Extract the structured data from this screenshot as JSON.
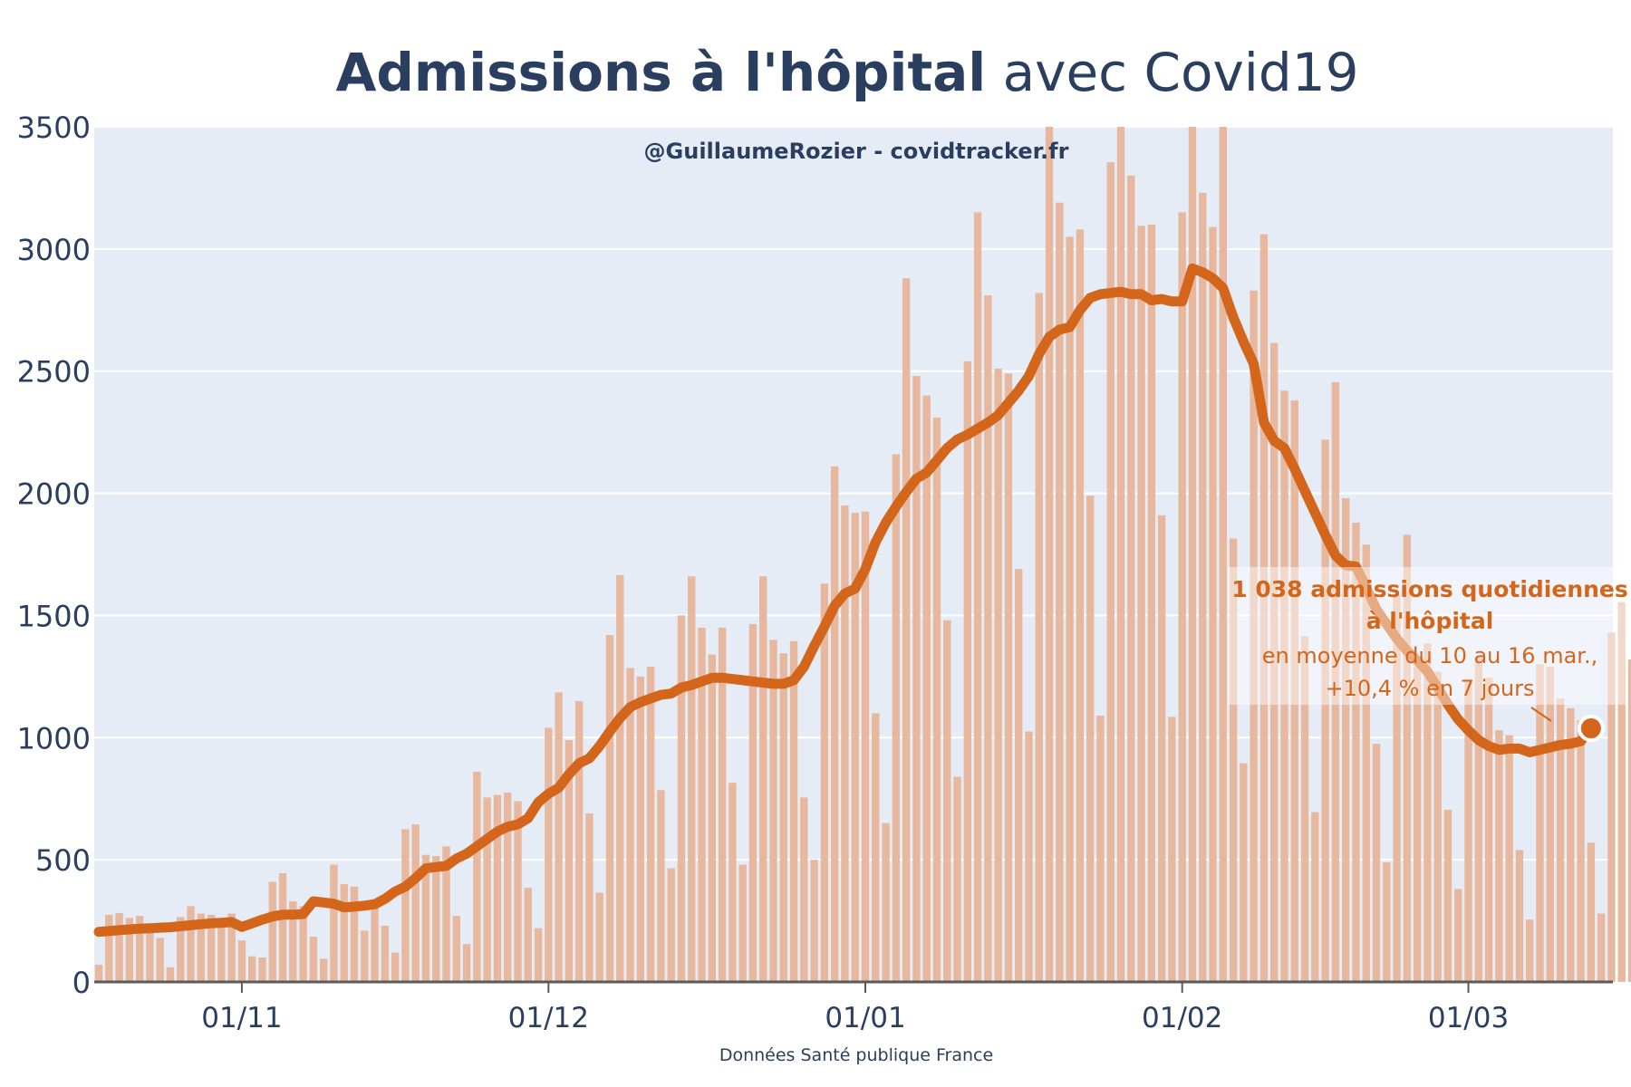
{
  "title": {
    "bold": "Admissions à l'hôpital",
    "light": " avec Covid19"
  },
  "credit": "@GuillaumeRozier - covidtracker.fr",
  "source": "Données Santé publique France",
  "colors": {
    "plot_bg": "#e5ecf6",
    "grid": "#ffffff",
    "bar": "#e7b89e",
    "line": "#d4661b",
    "text": "#2a3f5f",
    "annotation": "#d4661b"
  },
  "annotation": {
    "line1": "1 038 admissions quotidiennes",
    "line2": "à l'hôpital",
    "line3": "en moyenne du 10 au 16 mar.,",
    "line4": "+10,4 % en 7 jours"
  },
  "chart_data": {
    "type": "bar",
    "title": "Admissions à l'hôpital avec Covid19",
    "ylim": [
      0,
      3500
    ],
    "y_ticks": [
      0,
      500,
      1000,
      1500,
      2000,
      2500,
      3000,
      3500
    ],
    "x_start_date": "2020-10-18",
    "x_ticks": [
      {
        "label": "01/11",
        "date": "2020-11-01"
      },
      {
        "label": "01/12",
        "date": "2020-12-01"
      },
      {
        "label": "01/01",
        "date": "2021-01-01"
      },
      {
        "label": "01/02",
        "date": "2021-02-01"
      },
      {
        "label": "01/03",
        "date": "2021-03-01"
      }
    ],
    "grid": true,
    "series": [
      {
        "name": "Admissions quotidiennes",
        "type": "bar",
        "values": [
          70,
          275,
          282,
          262,
          270,
          225,
          180,
          60,
          265,
          310,
          280,
          275,
          255,
          280,
          170,
          105,
          100,
          410,
          445,
          330,
          310,
          185,
          95,
          480,
          400,
          390,
          210,
          330,
          230,
          120,
          625,
          645,
          520,
          515,
          555,
          270,
          155,
          860,
          755,
          765,
          775,
          740,
          385,
          220,
          1040,
          1185,
          990,
          1150,
          690,
          365,
          1420,
          1665,
          1285,
          1250,
          1290,
          785,
          465,
          1500,
          1660,
          1450,
          1340,
          1450,
          815,
          480,
          1465,
          1660,
          1400,
          1345,
          1395,
          755,
          500,
          1630,
          2110,
          1950,
          1920,
          1925,
          1100,
          650,
          2160,
          2880,
          2480,
          2400,
          2310,
          1480,
          840,
          2540,
          3150,
          2810,
          2510,
          2490,
          1690,
          1025,
          2820,
          3510,
          3190,
          3050,
          3080,
          1990,
          1090,
          3355,
          3510,
          3300,
          3095,
          3100,
          1910,
          1085,
          3150,
          3510,
          3230,
          3090,
          3510,
          1815,
          895,
          2830,
          3060,
          2615,
          2420,
          2380,
          1415,
          695,
          2220,
          2455,
          1980,
          1880,
          1790,
          975,
          490,
          1580,
          1830,
          1290,
          1385,
          1270,
          705,
          380,
          1240,
          1330,
          1245,
          1030,
          1010,
          540,
          255,
          1300,
          1290,
          1160,
          1120,
          1070,
          570,
          280,
          1430,
          1555,
          1320
        ]
      },
      {
        "name": "Moyenne 7 jours",
        "type": "line",
        "values": [
          205,
          208,
          212,
          215,
          218,
          220,
          222,
          224,
          228,
          232,
          236,
          240,
          242,
          245,
          225,
          240,
          255,
          268,
          275,
          275,
          278,
          330,
          325,
          320,
          305,
          308,
          312,
          318,
          340,
          370,
          390,
          425,
          465,
          470,
          475,
          505,
          525,
          555,
          585,
          615,
          635,
          645,
          670,
          735,
          770,
          795,
          850,
          895,
          915,
          965,
          1025,
          1080,
          1125,
          1145,
          1160,
          1175,
          1180,
          1205,
          1215,
          1230,
          1245,
          1245,
          1240,
          1235,
          1230,
          1225,
          1220,
          1220,
          1235,
          1290,
          1375,
          1455,
          1540,
          1590,
          1610,
          1690,
          1800,
          1880,
          1945,
          2005,
          2060,
          2085,
          2135,
          2185,
          2220,
          2240,
          2265,
          2290,
          2320,
          2370,
          2420,
          2480,
          2570,
          2640,
          2670,
          2680,
          2750,
          2800,
          2815,
          2820,
          2825,
          2815,
          2815,
          2790,
          2795,
          2785,
          2785,
          2920,
          2905,
          2880,
          2840,
          2720,
          2620,
          2530,
          2290,
          2215,
          2185,
          2100,
          2010,
          1920,
          1830,
          1745,
          1705,
          1700,
          1615,
          1525,
          1465,
          1405,
          1355,
          1315,
          1270,
          1205,
          1135,
          1075,
          1030,
          990,
          965,
          950,
          955,
          955,
          940,
          950,
          960,
          970,
          975,
          985,
          1038
        ]
      }
    ],
    "highlight_value": 1038
  }
}
